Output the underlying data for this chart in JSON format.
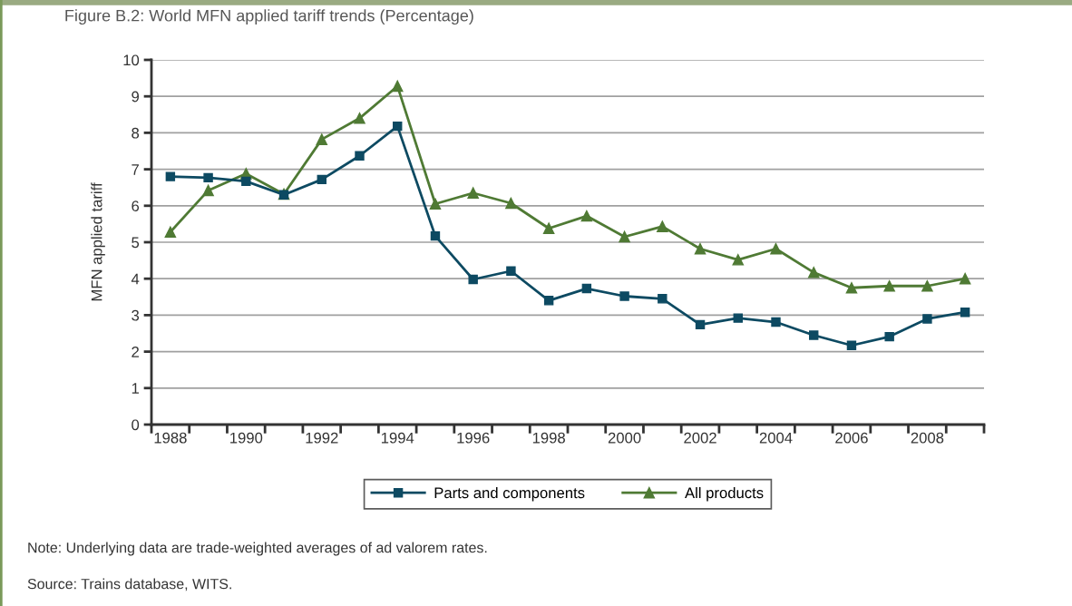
{
  "chart_data": {
    "type": "line",
    "title": "Figure B.2: World MFN applied tariff trends (Percentage)",
    "ylabel": "MFN applied tariff",
    "categories": [
      "1988",
      null,
      "1990",
      null,
      "1992",
      null,
      "1994",
      null,
      "1996",
      null,
      "1998",
      null,
      "2000",
      null,
      "2002",
      null,
      "2004",
      null,
      "2006",
      null,
      "2008",
      null
    ],
    "series": [
      {
        "name": "Parts and components",
        "color": "#0d4a62",
        "marker": "square",
        "values": [
          6.8,
          6.77,
          6.67,
          6.3,
          6.72,
          7.37,
          8.18,
          5.17,
          3.98,
          4.21,
          3.4,
          3.73,
          3.52,
          3.45,
          2.74,
          2.92,
          2.81,
          2.45,
          2.17,
          2.41,
          2.9,
          3.08
        ]
      },
      {
        "name": "All products",
        "color": "#4f7a34",
        "marker": "triangle",
        "values": [
          5.28,
          6.42,
          6.88,
          6.32,
          7.82,
          8.4,
          9.28,
          6.05,
          6.35,
          6.07,
          5.38,
          5.72,
          5.15,
          5.43,
          4.82,
          4.52,
          4.82,
          4.17,
          3.75,
          3.8,
          3.8,
          4.0
        ]
      }
    ],
    "ylim": [
      0,
      10
    ],
    "yticks": [
      0,
      1,
      2,
      3,
      4,
      5,
      6,
      7,
      8,
      9,
      10
    ],
    "grid": "y",
    "legend": "bottom",
    "line_style": "solid",
    "annotations": [
      "Note: Underlying data are trade-weighted averages of ad valorem rates.",
      "Source: Trains database, WITS."
    ]
  }
}
